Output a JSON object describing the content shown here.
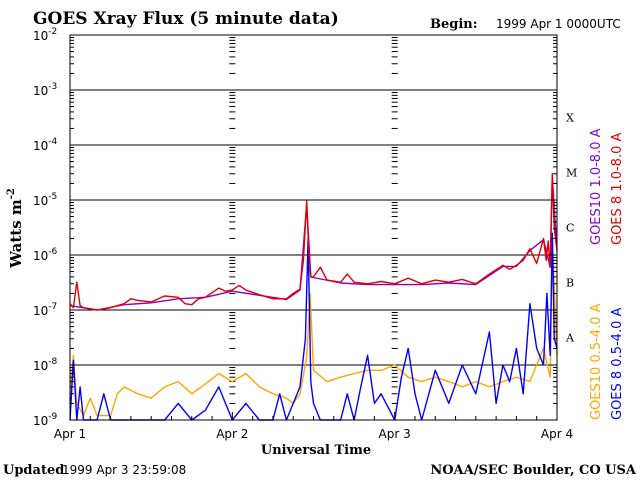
{
  "header": {
    "title": "GOES Xray Flux (5 minute data)",
    "begin_label": "Begin:",
    "begin_value": "1999 Apr 1 0000UTC"
  },
  "footer": {
    "updated_label": "Updated",
    "updated_value": "1999 Apr  3 23:59:08",
    "source": "NOAA/SEC Boulder, CO USA"
  },
  "colors": {
    "goes10_long": "#8b00d0",
    "goes8_long": "#e00000",
    "goes10_short": "#ffa500",
    "goes8_short": "#0000ff",
    "axis": "#000000"
  },
  "chart_data": {
    "type": "line",
    "title": "GOES Xray Flux (5 minute data)",
    "xlabel": "Universal Time",
    "ylabel": "Watts m",
    "ylabel_exp": "-2",
    "y_scale": "log",
    "ylim": [
      1e-09,
      0.01
    ],
    "xlim": [
      0,
      72
    ],
    "x_unit": "hours since 1999 Apr 1 0000UT",
    "x_ticks": [
      {
        "x": 0,
        "label": "Apr 1"
      },
      {
        "x": 24,
        "label": "Apr 2"
      },
      {
        "x": 48,
        "label": "Apr 3"
      },
      {
        "x": 72,
        "label": "Apr 4"
      }
    ],
    "y_ticks": [
      {
        "exp": -2,
        "base": "10",
        "sup": "-2"
      },
      {
        "exp": -3,
        "base": "10",
        "sup": "-3"
      },
      {
        "exp": -4,
        "base": "10",
        "sup": "-4"
      },
      {
        "exp": -5,
        "base": "10",
        "sup": "-5"
      },
      {
        "exp": -6,
        "base": "10",
        "sup": "-6"
      },
      {
        "exp": -7,
        "base": "10",
        "sup": "-7"
      },
      {
        "exp": -8,
        "base": "10",
        "sup": "-8"
      },
      {
        "exp": -9,
        "base": "10",
        "sup": "-9"
      }
    ],
    "grid": "horizontal at each decade",
    "flare_classes": [
      {
        "label": "X",
        "exp": -4
      },
      {
        "label": "M",
        "exp": -5
      },
      {
        "label": "C",
        "exp": -6
      },
      {
        "label": "B",
        "exp": -7
      },
      {
        "label": "A",
        "exp": -8
      }
    ],
    "legend_placement": "right, vertical",
    "legend": [
      {
        "name": "GOES10 1.0-8.0 A",
        "color": "#8b00d0"
      },
      {
        "name": "GOES 8 1.0-8.0 A",
        "color": "#e00000"
      },
      {
        "name": "GOES10 0.5-4.0 A",
        "color": "#ffa500"
      },
      {
        "name": "GOES 8 0.5-4.0 A",
        "color": "#0000ff"
      }
    ],
    "series": [
      {
        "name": "GOES 8 1.0-8.0 A",
        "color": "#e00000",
        "x": [
          0,
          0.5,
          1,
          1.5,
          2,
          3,
          4,
          6,
          8,
          9,
          10,
          12,
          14,
          16,
          17,
          18,
          19,
          20,
          22,
          23,
          24,
          25,
          26,
          28,
          30,
          32,
          33,
          34,
          34.5,
          35,
          35.3,
          35.6,
          36,
          37,
          38,
          40,
          41,
          42,
          44,
          46,
          48,
          50,
          52,
          54,
          56,
          58,
          60,
          62,
          64,
          65,
          66,
          67,
          68,
          69,
          70,
          70.4,
          70.7,
          71,
          71.3,
          71.6,
          72
        ],
        "y": [
          1.3e-07,
          1.1e-07,
          3.2e-07,
          1.2e-07,
          1.1e-07,
          1.05e-07,
          1e-07,
          1.1e-07,
          1.3e-07,
          1.6e-07,
          1.5e-07,
          1.4e-07,
          1.8e-07,
          1.7e-07,
          1.3e-07,
          1.25e-07,
          1.6e-07,
          1.7e-07,
          2.5e-07,
          2.2e-07,
          2.3e-07,
          2.8e-07,
          2.3e-07,
          1.9e-07,
          1.6e-07,
          1.6e-07,
          2e-07,
          2.4e-07,
          8e-07,
          9.5e-06,
          1.2e-06,
          4e-07,
          4e-07,
          6e-07,
          3.5e-07,
          3.2e-07,
          4.5e-07,
          3.2e-07,
          3e-07,
          3.3e-07,
          3e-07,
          3.8e-07,
          3e-07,
          3.5e-07,
          3.2e-07,
          3.6e-07,
          3e-07,
          4.5e-07,
          6.5e-07,
          5.5e-07,
          6.5e-07,
          8e-07,
          1.3e-06,
          7e-07,
          2e-06,
          8e-07,
          1.8e-06,
          6e-07,
          3e-05,
          3e-06,
          1.2e-06
        ]
      },
      {
        "name": "GOES10 1.0-8.0 A",
        "color": "#8b00d0",
        "x": [
          0,
          4,
          8,
          12,
          16,
          20,
          24,
          28,
          32,
          34,
          35,
          35.6,
          36,
          40,
          44,
          48,
          52,
          56,
          60,
          64,
          66,
          68,
          70,
          71,
          71.3,
          72
        ],
        "y": [
          1.2e-07,
          1e-07,
          1.25e-07,
          1.35e-07,
          1.6e-07,
          1.7e-07,
          2.2e-07,
          1.85e-07,
          1.55e-07,
          2.3e-07,
          8.5e-06,
          4e-07,
          3.9e-07,
          3.1e-07,
          2.9e-07,
          2.9e-07,
          2.9e-07,
          3.1e-07,
          2.9e-07,
          6.2e-07,
          6.2e-07,
          1.2e-06,
          1.9e-06,
          6e-07,
          2.6e-05,
          1.2e-06
        ]
      },
      {
        "name": "GOES10 0.5-4.0 A",
        "color": "#ffa500",
        "x": [
          0,
          0.5,
          1,
          2,
          3,
          4,
          6,
          7,
          8,
          10,
          12,
          14,
          16,
          18,
          20,
          22,
          24,
          26,
          28,
          30,
          32,
          33,
          34,
          35,
          35.5,
          36,
          38,
          40,
          42,
          44,
          46,
          48,
          50,
          52,
          54,
          56,
          58,
          60,
          62,
          64,
          66,
          68,
          70,
          71,
          71.3,
          72
        ],
        "y": [
          3e-09,
          1.5e-08,
          2e-09,
          1.2e-09,
          2.5e-09,
          1.2e-09,
          1.2e-09,
          3e-09,
          4e-09,
          3e-09,
          2.5e-09,
          4e-09,
          5e-09,
          3e-09,
          4.5e-09,
          7e-09,
          5e-09,
          7e-09,
          4e-09,
          3e-09,
          2.5e-09,
          2e-09,
          3e-09,
          1.4e-08,
          2e-07,
          8e-09,
          5e-09,
          6e-09,
          7e-09,
          8e-09,
          8e-09,
          1e-08,
          6e-09,
          5e-09,
          6e-09,
          5e-09,
          4e-09,
          5e-09,
          4e-09,
          5e-09,
          6e-09,
          5e-09,
          2e-08,
          6e-09,
          2e-06,
          1.5e-08
        ]
      },
      {
        "name": "GOES 8 0.5-4.0 A",
        "color": "#0000ff",
        "x": [
          0,
          0.5,
          1,
          1.5,
          2,
          3,
          4,
          5,
          6,
          8,
          10,
          12,
          14,
          16,
          18,
          20,
          22,
          24,
          26,
          28,
          30,
          31,
          32,
          33,
          34,
          34.8,
          35.2,
          35.6,
          36,
          37,
          38,
          40,
          41,
          42,
          43,
          44,
          45,
          46,
          48,
          49,
          50,
          51,
          52,
          54,
          56,
          58,
          60,
          62,
          63,
          64,
          65,
          66,
          67,
          68,
          69,
          70,
          70.5,
          71,
          71.3,
          71.6,
          72
        ],
        "y": [
          1e-09,
          1.2e-08,
          1e-09,
          4e-09,
          1e-09,
          1e-09,
          1e-09,
          3e-09,
          1e-09,
          1e-09,
          1e-09,
          1e-09,
          1e-09,
          2e-09,
          1e-09,
          1.5e-09,
          4e-09,
          1e-09,
          2e-09,
          1e-09,
          1e-09,
          3e-09,
          1e-09,
          2e-09,
          4e-09,
          3e-08,
          2e-06,
          5e-09,
          2e-09,
          1e-09,
          1e-09,
          1e-09,
          3e-09,
          1e-09,
          4e-09,
          1.5e-08,
          2e-09,
          3e-09,
          1e-09,
          6e-09,
          2e-08,
          3e-09,
          1e-09,
          8e-09,
          2e-09,
          1e-08,
          3e-09,
          4e-08,
          2e-09,
          1e-08,
          5e-09,
          2e-08,
          3e-09,
          1.3e-07,
          2e-08,
          1e-08,
          2e-07,
          1.5e-08,
          2.5e-06,
          3e-08,
          2e-08
        ]
      }
    ]
  }
}
